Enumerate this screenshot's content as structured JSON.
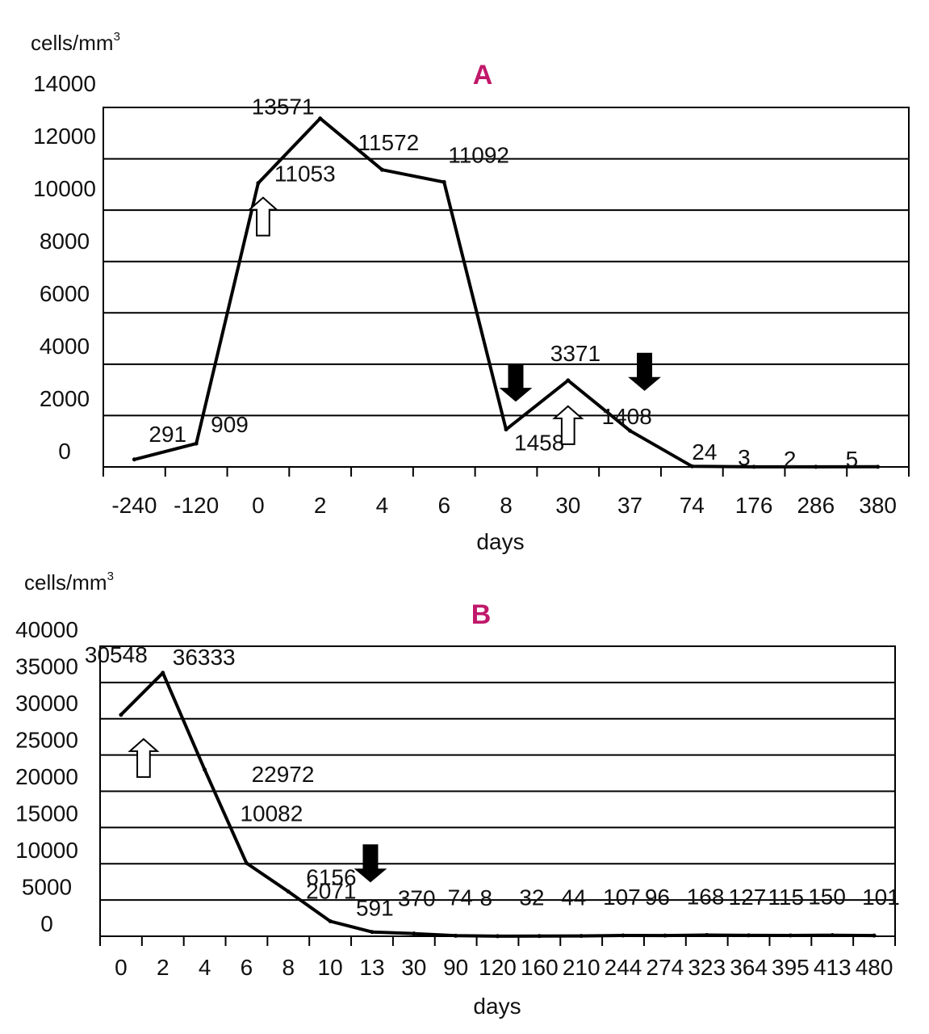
{
  "chart_data": [
    {
      "panel": "A",
      "type": "line",
      "title": "A",
      "ylabel": "cells/mm",
      "ylabel_sup": "3",
      "xlabel": "days",
      "ylim": [
        0,
        14000
      ],
      "yticks": [
        "14000",
        "12000",
        "10000",
        "8000",
        "6000",
        "4000",
        "2000",
        "0"
      ],
      "categories": [
        "-240",
        "-120",
        "0",
        "2",
        "4",
        "6",
        "8",
        "30",
        "37",
        "74",
        "176",
        "286",
        "380"
      ],
      "values": [
        291,
        909,
        11053,
        13571,
        11572,
        11092,
        1458,
        3371,
        1408,
        24,
        3,
        2,
        5
      ],
      "data_labels": [
        "291",
        "909",
        "11053",
        "13571",
        "11572",
        "11092",
        "1458",
        "3371",
        "1408",
        "24",
        "3",
        "2",
        "5"
      ],
      "annotations": [
        {
          "type": "open-arrow-up",
          "day": "0"
        },
        {
          "type": "filled-arrow-down",
          "day": "8"
        },
        {
          "type": "open-arrow-up",
          "day": "30"
        },
        {
          "type": "filled-arrow-down",
          "day": "37"
        }
      ]
    },
    {
      "panel": "B",
      "type": "line",
      "title": "B",
      "ylabel": "cells/mm",
      "ylabel_sup": "3",
      "xlabel": "days",
      "ylim": [
        0,
        40000
      ],
      "yticks": [
        "40000",
        "35000",
        "30000",
        "25000",
        "20000",
        "15000",
        "10000",
        "5000",
        "0"
      ],
      "categories": [
        "0",
        "2",
        "4",
        "6",
        "8",
        "10",
        "13",
        "30",
        "90",
        "120",
        "160",
        "210",
        "244",
        "274",
        "323",
        "364",
        "395",
        "413",
        "480"
      ],
      "values": [
        30548,
        36333,
        22972,
        10082,
        6156,
        2071,
        591,
        370,
        74,
        8,
        32,
        44,
        107,
        96,
        168,
        127,
        115,
        150,
        101
      ],
      "data_labels": [
        "30548",
        "36333",
        "22972",
        "10082",
        "6156",
        "2071",
        "591",
        "370",
        "74",
        "8",
        "32",
        "44",
        "107",
        "96",
        "168",
        "127",
        "115",
        "150",
        "101"
      ],
      "annotations": [
        {
          "type": "open-arrow-up",
          "day": "0"
        },
        {
          "type": "filled-arrow-down",
          "day": "13"
        }
      ]
    }
  ]
}
